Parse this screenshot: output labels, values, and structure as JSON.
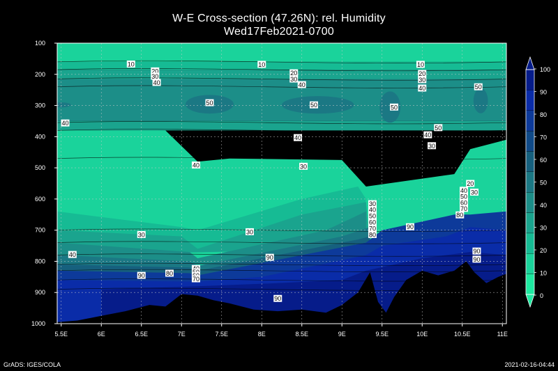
{
  "chart_data": {
    "type": "heatmap",
    "title": "W-E Cross-section (47.26N): rel. Humidity",
    "subtitle": "Wed17Feb2021-0700",
    "x_ticks": [
      "5.5E",
      "6E",
      "6.5E",
      "7E",
      "7.5E",
      "8E",
      "8.5E",
      "9E",
      "9.5E",
      "10E",
      "10.5E",
      "11E"
    ],
    "x_values": [
      5.5,
      6,
      6.5,
      7,
      7.5,
      8,
      8.5,
      9,
      9.5,
      10,
      10.5,
      11
    ],
    "y_ticks": [
      "100",
      "200",
      "300",
      "400",
      "500",
      "600",
      "700",
      "800",
      "900",
      "1000"
    ],
    "y_values": [
      100,
      200,
      300,
      400,
      500,
      600,
      700,
      800,
      900,
      1000
    ],
    "xlim": [
      5.45,
      11.05
    ],
    "ylim": [
      100,
      1000
    ],
    "grid": true,
    "colorbar": {
      "levels": [
        0,
        10,
        20,
        30,
        40,
        50,
        60,
        70,
        80,
        90,
        100
      ],
      "labels": [
        "0",
        "10",
        "20",
        "30",
        "40",
        "50",
        "60",
        "70",
        "80",
        "90",
        "100"
      ],
      "colors": [
        "#1de9a0",
        "#1ad39b",
        "#16bb94",
        "#1aa48e",
        "#1c8e88",
        "#1b7884",
        "#16607e",
        "#104a88",
        "#0d3a9a",
        "#0a2ca8",
        "#061c8a"
      ]
    },
    "terrain_pressure": [
      {
        "x": 5.45,
        "p": 995
      },
      {
        "x": 5.7,
        "p": 990
      },
      {
        "x": 6.0,
        "p": 975
      },
      {
        "x": 6.3,
        "p": 960
      },
      {
        "x": 6.6,
        "p": 940
      },
      {
        "x": 6.8,
        "p": 945
      },
      {
        "x": 7.0,
        "p": 905
      },
      {
        "x": 7.2,
        "p": 910
      },
      {
        "x": 7.4,
        "p": 925
      },
      {
        "x": 7.6,
        "p": 935
      },
      {
        "x": 7.9,
        "p": 955
      },
      {
        "x": 8.2,
        "p": 960
      },
      {
        "x": 8.5,
        "p": 955
      },
      {
        "x": 8.8,
        "p": 965
      },
      {
        "x": 9.0,
        "p": 940
      },
      {
        "x": 9.2,
        "p": 900
      },
      {
        "x": 9.35,
        "p": 835
      },
      {
        "x": 9.45,
        "p": 930
      },
      {
        "x": 9.55,
        "p": 965
      },
      {
        "x": 9.65,
        "p": 915
      },
      {
        "x": 9.8,
        "p": 860
      },
      {
        "x": 10.0,
        "p": 830
      },
      {
        "x": 10.2,
        "p": 845
      },
      {
        "x": 10.4,
        "p": 830
      },
      {
        "x": 10.55,
        "p": 800
      },
      {
        "x": 10.65,
        "p": 835
      },
      {
        "x": 10.8,
        "p": 870
      },
      {
        "x": 10.95,
        "p": 850
      },
      {
        "x": 11.05,
        "p": 840
      }
    ],
    "contour_labels": [
      {
        "text": "10",
        "x": 6.37,
        "p": 167
      },
      {
        "text": "10",
        "x": 8.0,
        "p": 168
      },
      {
        "text": "10",
        "x": 9.98,
        "p": 168
      },
      {
        "text": "20",
        "x": 6.67,
        "p": 189
      },
      {
        "text": "30",
        "x": 6.67,
        "p": 206
      },
      {
        "text": "40",
        "x": 6.69,
        "p": 226
      },
      {
        "text": "20",
        "x": 8.4,
        "p": 195
      },
      {
        "text": "30",
        "x": 8.4,
        "p": 215
      },
      {
        "text": "40",
        "x": 8.5,
        "p": 233
      },
      {
        "text": "20",
        "x": 10.0,
        "p": 197
      },
      {
        "text": "30",
        "x": 10.0,
        "p": 217
      },
      {
        "text": "40",
        "x": 10.0,
        "p": 244
      },
      {
        "text": "50",
        "x": 10.7,
        "p": 240
      },
      {
        "text": "50",
        "x": 7.35,
        "p": 291
      },
      {
        "text": "50",
        "x": 8.65,
        "p": 298
      },
      {
        "text": "50",
        "x": 9.65,
        "p": 305
      },
      {
        "text": "50",
        "x": 10.2,
        "p": 371
      },
      {
        "text": "40",
        "x": 5.55,
        "p": 356
      },
      {
        "text": "40",
        "x": 8.45,
        "p": 403
      },
      {
        "text": "40",
        "x": 10.07,
        "p": 394
      },
      {
        "text": "30",
        "x": 10.12,
        "p": 429
      },
      {
        "text": "40",
        "x": 7.18,
        "p": 491
      },
      {
        "text": "30",
        "x": 8.52,
        "p": 495
      },
      {
        "text": "20",
        "x": 10.6,
        "p": 550
      },
      {
        "text": "40",
        "x": 10.52,
        "p": 572
      },
      {
        "text": "30",
        "x": 10.65,
        "p": 578
      },
      {
        "text": "50",
        "x": 10.52,
        "p": 591
      },
      {
        "text": "60",
        "x": 10.52,
        "p": 611
      },
      {
        "text": "70",
        "x": 10.52,
        "p": 630
      },
      {
        "text": "80",
        "x": 10.47,
        "p": 651
      },
      {
        "text": "30",
        "x": 9.38,
        "p": 615
      },
      {
        "text": "40",
        "x": 9.38,
        "p": 634
      },
      {
        "text": "50",
        "x": 9.38,
        "p": 654
      },
      {
        "text": "60",
        "x": 9.38,
        "p": 674
      },
      {
        "text": "70",
        "x": 9.38,
        "p": 694
      },
      {
        "text": "80",
        "x": 9.38,
        "p": 714
      },
      {
        "text": "90",
        "x": 9.85,
        "p": 689
      },
      {
        "text": "30",
        "x": 6.5,
        "p": 714
      },
      {
        "text": "30",
        "x": 7.85,
        "p": 705
      },
      {
        "text": "40",
        "x": 5.64,
        "p": 778
      },
      {
        "text": "90",
        "x": 8.1,
        "p": 787
      },
      {
        "text": "90",
        "x": 10.68,
        "p": 767
      },
      {
        "text": "90",
        "x": 10.68,
        "p": 793
      },
      {
        "text": "40",
        "x": 7.18,
        "p": 823
      },
      {
        "text": "50",
        "x": 7.18,
        "p": 834
      },
      {
        "text": "60",
        "x": 7.18,
        "p": 845
      },
      {
        "text": "70",
        "x": 7.18,
        "p": 856
      },
      {
        "text": "80",
        "x": 6.85,
        "p": 838
      },
      {
        "text": "90",
        "x": 6.5,
        "p": 845
      },
      {
        "text": "90",
        "x": 8.2,
        "p": 919
      }
    ]
  },
  "footer": {
    "left": "GrADS: IGES/COLA",
    "right": "2021-02-16-04:44"
  }
}
